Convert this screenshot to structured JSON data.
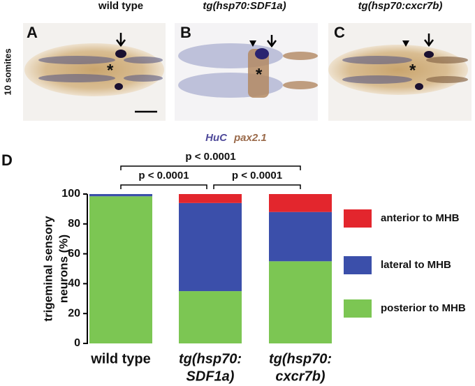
{
  "figure": {
    "panels": [
      {
        "letter": "A",
        "title": "wild type",
        "marker": "*"
      },
      {
        "letter": "B",
        "title": "tg(hsp70:SDF1a)",
        "marker": "*"
      },
      {
        "letter": "C",
        "title": "tg(hsp70:cxcr7b)",
        "marker": "*"
      }
    ],
    "side_label": "10 somites",
    "stain_labels": [
      "HuC",
      "pax2.1"
    ]
  },
  "chart_data": {
    "type": "stacked-bar",
    "panel_label": "D",
    "ylabel": [
      "trigeminal sensory",
      "neurons (%)"
    ],
    "categories": [
      [
        "wild type"
      ],
      [
        "tg(hsp70:",
        "SDF1a)"
      ],
      [
        "tg(hsp70:",
        "cxcr7b)"
      ]
    ],
    "series": [
      {
        "name": "posterior to MHB",
        "color": "#7cc653",
        "values": [
          98.5,
          35,
          55
        ]
      },
      {
        "name": "lateral to MHB",
        "color": "#3b4faa",
        "values": [
          1.5,
          59,
          33
        ]
      },
      {
        "name": "anterior to MHB",
        "color": "#e3262d",
        "values": [
          0,
          6,
          12
        ]
      }
    ],
    "ylim": [
      0,
      100
    ],
    "yticks": [
      0,
      20,
      40,
      60,
      80,
      100
    ],
    "annotations": [
      "p < 0.0001",
      "p < 0.0001",
      "p < 0.0001"
    ]
  }
}
